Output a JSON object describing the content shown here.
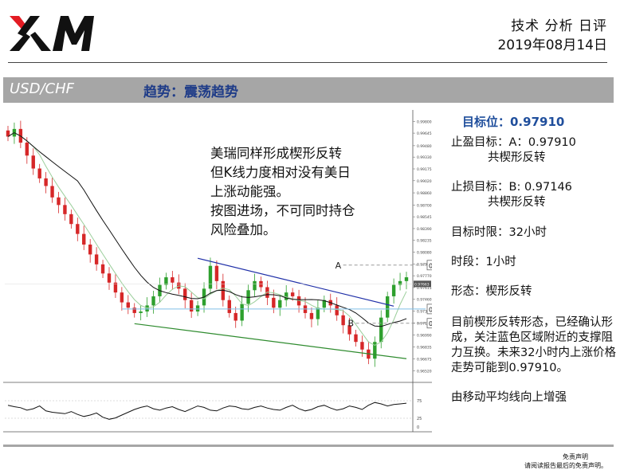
{
  "header": {
    "logo_text": "XM",
    "doc_type": "技术 分析 日评",
    "date": "2019年08月14日"
  },
  "band": {
    "pair": "USD/CHF",
    "trend": "趋势：震荡趋势"
  },
  "side": {
    "target_heading": "目标位：0.97910",
    "tp_line1": "止盈目标：A：0.97910",
    "tp_line2": "共楔形反转",
    "sl_line1": "止损目标：B: 0.97146",
    "sl_line2": "共楔形反转",
    "time_limit": "目标时限：32小时",
    "timeframe": "时段：1小时",
    "pattern": "形态：楔形反转",
    "analysis": "目前楔形反转形态，已经确认形成，关注蓝色区域附近的支撑阻力互换。未来32小时内上涨价格走势可能到0.97910。",
    "ma_note": "由移动平均线向上增强"
  },
  "disclaimer": {
    "line1": "免责声明",
    "line2": "请阅读报告最后的免责声明。"
  },
  "chart_data": {
    "type": "candlestick",
    "annotation": [
      "美瑞同样形成楔形反转",
      "但K线力度相对没有美日",
      "上涨动能强。",
      "按图进场，不可同时持仓",
      "风险叠加。"
    ],
    "ylim": [
      0.9641,
      0.9995
    ],
    "y_ticks": [
      0.998,
      0.99645,
      0.9948,
      0.9933,
      0.99175,
      0.9902,
      0.9886,
      0.987,
      0.98545,
      0.9839,
      0.98235,
      0.9808,
      0.97925,
      0.9777,
      0.97615,
      0.9746,
      0.97305,
      0.9715,
      0.9699,
      0.96835,
      0.96675,
      0.9652
    ],
    "current_price": 0.97663,
    "levels": [
      {
        "label": "A",
        "value": 0.9791,
        "tag": "0.97910",
        "color": "#999999"
      },
      {
        "label": "",
        "value": 0.97333,
        "tag": "0.97333",
        "color": "#7fbfe8"
      },
      {
        "label": "B",
        "value": 0.97146,
        "tag": "0.97146",
        "color": "#999999"
      }
    ],
    "close_path": [
      0.996,
      0.997,
      0.9952,
      0.9935,
      0.9918,
      0.9905,
      0.9895,
      0.988,
      0.987,
      0.9858,
      0.9845,
      0.9832,
      0.9818,
      0.9805,
      0.9792,
      0.978,
      0.9768,
      0.9755,
      0.9742,
      0.9735,
      0.9728,
      0.973,
      0.9738,
      0.975,
      0.9765,
      0.9775,
      0.9768,
      0.976,
      0.9745,
      0.973,
      0.9738,
      0.976,
      0.979,
      0.977,
      0.9745,
      0.9728,
      0.9718,
      0.974,
      0.9758,
      0.977,
      0.9762,
      0.9748,
      0.9735,
      0.9745,
      0.9755,
      0.975,
      0.9738,
      0.9728,
      0.972,
      0.9735,
      0.9745,
      0.9738,
      0.9725,
      0.9712,
      0.97,
      0.969,
      0.968,
      0.9668,
      0.969,
      0.9722,
      0.975,
      0.9765,
      0.977,
      0.9775
    ],
    "oscillator": {
      "ylim": [
        0,
        100
      ],
      "ticks": [
        75,
        25,
        0
      ],
      "values": [
        62,
        58,
        55,
        48,
        52,
        60,
        46,
        42,
        40,
        38,
        44,
        36,
        30,
        34,
        40,
        28,
        22,
        26,
        34,
        42,
        50,
        56,
        60,
        52,
        48,
        54,
        58,
        50,
        44,
        52,
        60,
        56,
        48,
        46,
        54,
        60,
        58,
        52,
        50,
        56,
        60,
        54,
        50,
        48,
        56,
        62,
        52,
        46,
        50,
        58,
        62,
        54,
        48,
        52,
        60,
        56,
        50,
        62,
        70,
        66,
        60,
        64,
        66,
        68
      ]
    }
  }
}
